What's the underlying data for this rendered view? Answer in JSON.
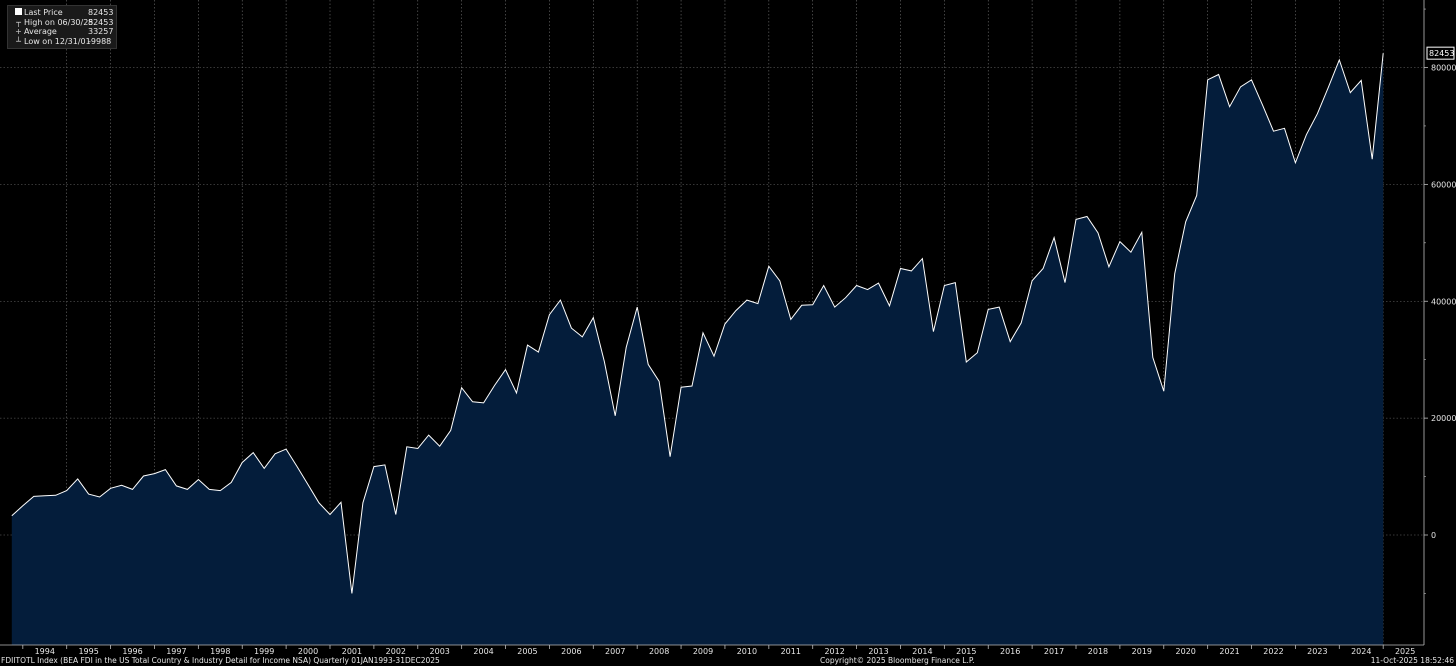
{
  "legend": {
    "items": [
      {
        "label": "Last Price",
        "value": "82453",
        "symbol": "box"
      },
      {
        "label": "High on 06/30/25",
        "value": "82453",
        "symbol": "tick"
      },
      {
        "label": "Average",
        "value": "33257",
        "symbol": "plus"
      },
      {
        "label": "Low on 12/31/01",
        "value": "-9988",
        "symbol": "tick"
      }
    ]
  },
  "footer": {
    "description": "FDIITOTL Index (BEA FDI in the US Total Country & Industry Detail for Income NSA) Quarterly 01JAN1993-31DEC2025",
    "copyright": "Copyright© 2025 Bloomberg Finance L.P.",
    "timestamp": "11-Oct-2025 18:52:46"
  },
  "colors": {
    "background": "#000000",
    "area_fill": "#041d3b",
    "line": "#ffffff",
    "grid": "#6e6e6e"
  },
  "chart_data": {
    "type": "area",
    "title": "",
    "xlabel": "",
    "ylabel": "",
    "ylim": [
      -20000,
      90000
    ],
    "yticks": [
      0,
      20000,
      40000,
      60000,
      80000
    ],
    "ytick_labels": [
      "0",
      "20000",
      "40000",
      "60000",
      "80000"
    ],
    "last_value_label": "82453",
    "x_labels": [
      "1994",
      "1995",
      "1996",
      "1997",
      "1998",
      "1999",
      "2000",
      "2001",
      "2002",
      "2003",
      "2004",
      "2005",
      "2006",
      "2007",
      "2008",
      "2009",
      "2010",
      "2011",
      "2012",
      "2013",
      "2014",
      "2015",
      "2016",
      "2017",
      "2018",
      "2019",
      "2020",
      "2021",
      "2022",
      "2023",
      "2024",
      "2025"
    ],
    "x_start": 1993.75,
    "x_step": 0.25,
    "grid": true,
    "legend_position": "top-left",
    "values": [
      3300,
      5000,
      6600,
      6700,
      6800,
      7600,
      9600,
      7000,
      6500,
      8000,
      8500,
      7800,
      10100,
      10500,
      11200,
      8400,
      7800,
      9500,
      7800,
      7600,
      9000,
      12400,
      14100,
      11400,
      13900,
      14700,
      11700,
      8600,
      5500,
      3500,
      5600,
      -9988,
      5500,
      11700,
      12000,
      3500,
      15100,
      14800,
      17100,
      15200,
      17900,
      25200,
      22800,
      22600,
      25600,
      28300,
      24300,
      32500,
      31300,
      37700,
      40200,
      35400,
      33900,
      37200,
      29700,
      20400,
      32100,
      39000,
      29200,
      26300,
      13400,
      25300,
      25500,
      34600,
      30600,
      36100,
      38400,
      40200,
      39600,
      46000,
      43500,
      36900,
      39300,
      39400,
      42700,
      39000,
      40600,
      42700,
      42000,
      43100,
      39200,
      45600,
      45200,
      47300,
      34800,
      42700,
      43200,
      29600,
      31200,
      38600,
      39000,
      33100,
      36300,
      43500,
      45600,
      50900,
      43200,
      54000,
      54500,
      51700,
      45900,
      50200,
      48400,
      51800,
      30400,
      24600,
      44700,
      53600,
      58100,
      77900,
      78800,
      73300,
      76700,
      77900,
      73600,
      69100,
      69600,
      63700,
      68500,
      72100,
      76600,
      81300,
      75700,
      77800,
      64300,
      82453
    ]
  }
}
